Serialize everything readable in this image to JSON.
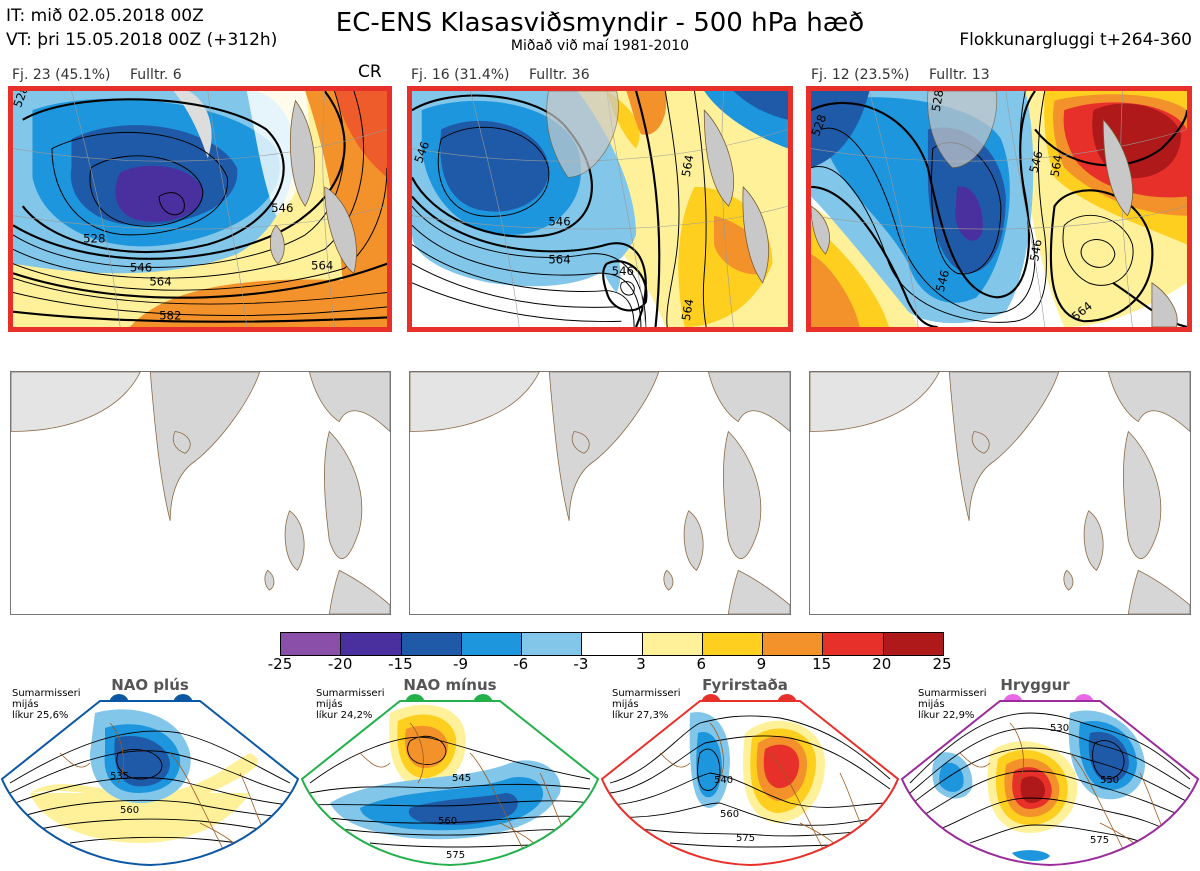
{
  "header": {
    "it": "IT: mið 02.05.2018 00Z",
    "vt": "VT: þri 15.05.2018 00Z  (+312h)",
    "title": "EC-ENS Klasasviðsmyndir - 500 hPa hæð",
    "subtitle": "Miðað við maí 1981-2010",
    "window": "Flokkunargluggi t+264-360"
  },
  "panels": [
    {
      "count": "Fj. 23 (45.1%)",
      "rep": "Fulltr. 6",
      "regime": "CR",
      "contour_labels": [
        "528",
        "546",
        "564",
        "546",
        "564",
        "582",
        "528"
      ]
    },
    {
      "count": "Fj. 16 (31.4%)",
      "rep": "Fulltr. 36",
      "regime": "",
      "contour_labels": [
        "546",
        "546",
        "564",
        "546",
        "564",
        "564"
      ]
    },
    {
      "count": "Fj. 12 (23.5%)",
      "rep": "Fulltr. 13",
      "regime": "",
      "contour_labels": [
        "528",
        "528",
        "546",
        "546",
        "564",
        "564",
        "546"
      ]
    }
  ],
  "colorbar": {
    "ticks": [
      "-25",
      "-20",
      "-15",
      "-9",
      "-6",
      "-3",
      "3",
      "6",
      "9",
      "15",
      "20",
      "25"
    ],
    "colors": [
      "#8a4fa8",
      "#4a2f9e",
      "#1f5aa8",
      "#1d96dd",
      "#82c6ea",
      "#ffffff",
      "#fff19a",
      "#ffcf1f",
      "#f3922b",
      "#e8302a",
      "#b01919"
    ]
  },
  "regimes": [
    {
      "name": "NAO plús",
      "note": "Sumarmisseri\nmijás\nlíkur 25,6%",
      "color": "#0b57a4",
      "labels": [
        "535",
        "560"
      ]
    },
    {
      "name": "NAO mínus",
      "note": "Sumarmisseri\nmijás\nlíkur 24,2%",
      "color": "#22b04b",
      "labels": [
        "545",
        "560",
        "575"
      ]
    },
    {
      "name": "Fyrirstaða",
      "note": "Sumarmisseri\nmijás\nlíkur 27,3%",
      "color": "#e8302a",
      "labels": [
        "540",
        "560",
        "575"
      ]
    },
    {
      "name": "Hryggur",
      "note": "Sumarmisseri\nmijás\nlíkur 22,9%",
      "color": "#e868e8",
      "labels": [
        "530",
        "550",
        "575"
      ]
    }
  ]
}
